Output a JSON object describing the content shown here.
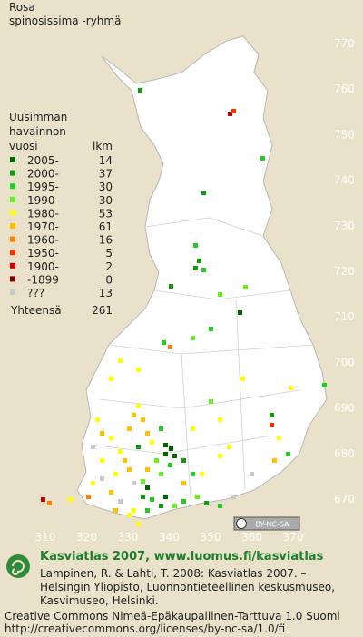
{
  "title": [
    "Rosa",
    "spinosissima -ryhmä"
  ],
  "legend": {
    "heading": [
      "Uusimman",
      "havainnon"
    ],
    "col_year": "vuosi",
    "col_count": "lkm",
    "rows": [
      {
        "label": "2005-",
        "count": 14,
        "color": "#006400"
      },
      {
        "label": "2000-",
        "count": 37,
        "color": "#129a12"
      },
      {
        "label": "1995-",
        "count": 30,
        "color": "#22cc22"
      },
      {
        "label": "1990-",
        "count": 30,
        "color": "#66f020"
      },
      {
        "label": "1980-",
        "count": 53,
        "color": "#ffff00"
      },
      {
        "label": "1970-",
        "count": 61,
        "color": "#ffc000"
      },
      {
        "label": "1960-",
        "count": 16,
        "color": "#ff8000"
      },
      {
        "label": "1950-",
        "count": 5,
        "color": "#ff3000"
      },
      {
        "label": "1900-",
        "count": 2,
        "color": "#cc0000"
      },
      {
        "label": "-1899",
        "count": 0,
        "color": "#7a0000"
      },
      {
        "label": "???",
        "count": 13,
        "color": "#c8c8c8"
      }
    ],
    "total_label": "Yhteensä",
    "total": 261
  },
  "x_axis": {
    "labels": [
      310,
      320,
      330,
      340,
      350,
      360,
      370
    ]
  },
  "y_axis": {
    "labels": [
      770,
      760,
      750,
      740,
      730,
      720,
      710,
      700,
      690,
      680,
      670
    ]
  },
  "license_badge": "BY-NC-SA",
  "footer": {
    "title": "Kasviatlas 2007, www.luomus.fi/kasviatlas",
    "citation": [
      "Lampinen, R. & Lahti, T. 2008: Kasviatlas 2007. –",
      "Helsingin Yliopisto, Luonnontieteellinen keskusmuseo,",
      "Kasvimuseo, Helsinki."
    ],
    "license": [
      "Creative Commons Nimeä-Epäkaupallinen-Tarttuva 1.0 Suomi",
      "http://creativecommons.org/licenses/by-nc-sa/1.0/fi"
    ]
  }
}
